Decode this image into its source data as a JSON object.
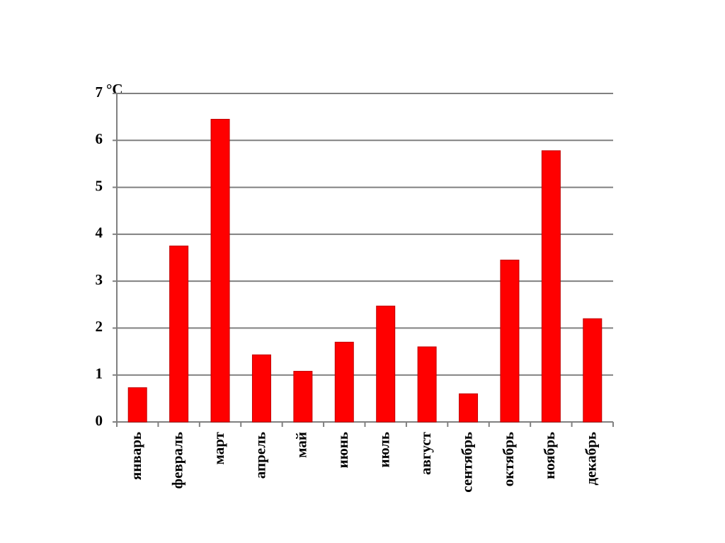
{
  "chart_data": {
    "type": "bar",
    "y_label": "°C",
    "categories": [
      "январь",
      "февраль",
      "март",
      "апрель",
      "май",
      "июнь",
      "июль",
      "август",
      "сентябрь",
      "октябрь",
      "ноябрь",
      "декабрь"
    ],
    "values": [
      0.73,
      3.75,
      6.45,
      1.43,
      1.08,
      1.7,
      2.47,
      1.6,
      0.6,
      3.45,
      5.78,
      2.2
    ],
    "color": "#ff0000",
    "ylim": [
      0,
      7
    ],
    "yticks": [
      0,
      1,
      2,
      3,
      4,
      5,
      6,
      7
    ],
    "grid": true
  }
}
